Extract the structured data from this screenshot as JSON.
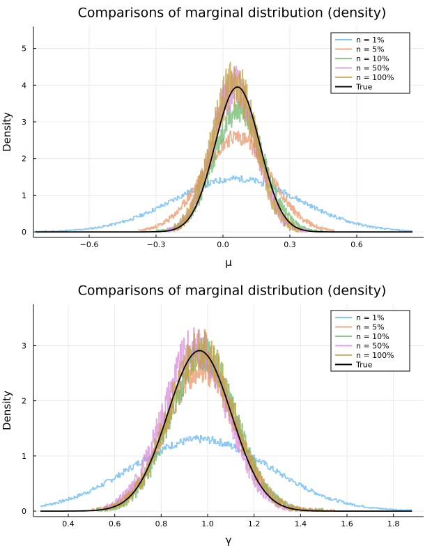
{
  "chart_data": [
    {
      "type": "line",
      "title": "Comparisons of marginal distribution (density)",
      "xlabel": "μ",
      "ylabel": "Density",
      "xlim": [
        -0.85,
        0.9
      ],
      "ylim": [
        -0.15,
        5.6
      ],
      "xticks": [
        -0.6,
        -0.3,
        0.0,
        0.3,
        0.6
      ],
      "xtick_labels": [
        "−0.6",
        "−0.3",
        "0.0",
        "0.3",
        "0.6"
      ],
      "yticks": [
        0,
        1,
        2,
        3,
        4,
        5
      ],
      "ytick_labels": [
        "0",
        "1",
        "2",
        "3",
        "4",
        "5"
      ],
      "grid": true,
      "legend_position": "top-right",
      "series": [
        {
          "name": "n = 1%",
          "color": "#63b6f2",
          "style": "noisy-density",
          "mean": 0.06,
          "sd": 0.28,
          "peak": 1.45,
          "noise": 0.12,
          "x": [
            -0.84,
            0.85
          ],
          "seed": 11
        },
        {
          "name": "n = 5%",
          "color": "#e8966a",
          "style": "noisy-density",
          "mean": 0.06,
          "sd": 0.15,
          "peak": 2.6,
          "noise": 0.17,
          "x": [
            -0.38,
            0.5
          ],
          "seed": 23
        },
        {
          "name": "n = 10%",
          "color": "#6dba6d",
          "style": "noisy-density",
          "mean": 0.07,
          "sd": 0.11,
          "peak": 3.35,
          "noise": 0.22,
          "x": [
            -0.3,
            0.45
          ],
          "seed": 37
        },
        {
          "name": "n = 50%",
          "color": "#d98cd9",
          "style": "noisy-density",
          "mean": 0.05,
          "sd": 0.1,
          "peak": 3.95,
          "noise": 0.3,
          "x": [
            -0.25,
            0.38
          ],
          "seed": 41
        },
        {
          "name": "n = 100%",
          "color": "#c4a040",
          "style": "noisy-density",
          "mean": 0.05,
          "sd": 0.1,
          "peak": 4.05,
          "noise": 0.33,
          "x": [
            -0.22,
            0.35
          ],
          "seed": 53
        },
        {
          "name": "True",
          "color": "#000000",
          "style": "smooth",
          "mean": 0.065,
          "sd": 0.1,
          "peak": 3.95,
          "x": [
            -0.84,
            0.85
          ]
        }
      ]
    },
    {
      "type": "line",
      "title": "Comparisons of marginal distribution (density)",
      "xlabel": "γ",
      "ylabel": "Density",
      "xlim": [
        0.25,
        1.93
      ],
      "ylim": [
        -0.1,
        3.75
      ],
      "xticks": [
        0.4,
        0.6,
        0.8,
        1.0,
        1.2,
        1.4,
        1.6,
        1.8
      ],
      "xtick_labels": [
        "0.4",
        "0.6",
        "0.8",
        "1.0",
        "1.2",
        "1.4",
        "1.6",
        "1.8"
      ],
      "yticks": [
        0,
        1,
        2,
        3
      ],
      "ytick_labels": [
        "0",
        "1",
        "2",
        "3"
      ],
      "grid": true,
      "legend_position": "top-right",
      "series": [
        {
          "name": "n = 1%",
          "color": "#63b6f2",
          "style": "noisy-density",
          "mean": 0.97,
          "sd": 0.3,
          "peak": 1.3,
          "noise": 0.11,
          "x": [
            0.28,
            1.88
          ],
          "seed": 7
        },
        {
          "name": "n = 5%",
          "color": "#e8966a",
          "style": "noisy-density",
          "mean": 0.97,
          "sd": 0.15,
          "peak": 2.55,
          "noise": 0.18,
          "x": [
            0.5,
            1.55
          ],
          "seed": 19
        },
        {
          "name": "n = 10%",
          "color": "#6dba6d",
          "style": "noisy-density",
          "mean": 0.98,
          "sd": 0.14,
          "peak": 2.85,
          "noise": 0.22,
          "x": [
            0.52,
            1.5
          ],
          "seed": 29
        },
        {
          "name": "n = 50%",
          "color": "#d98cd9",
          "style": "noisy-density",
          "mean": 0.95,
          "sd": 0.14,
          "peak": 3.0,
          "noise": 0.25,
          "x": [
            0.55,
            1.45
          ],
          "seed": 31
        },
        {
          "name": "n = 100%",
          "color": "#c4a040",
          "style": "noisy-density",
          "mean": 0.97,
          "sd": 0.14,
          "peak": 2.95,
          "noise": 0.25,
          "x": [
            0.55,
            1.5
          ],
          "seed": 43
        },
        {
          "name": "True",
          "color": "#000000",
          "style": "smooth",
          "mean": 0.965,
          "sd": 0.137,
          "peak": 2.91,
          "x": [
            0.28,
            1.88
          ]
        }
      ]
    }
  ]
}
